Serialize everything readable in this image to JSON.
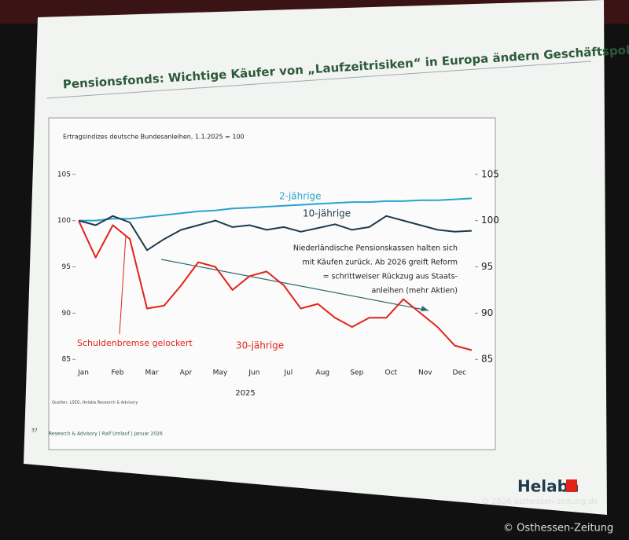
{
  "chart_data": {
    "type": "line",
    "title": "Pensionsfonds: Wichtige Käufer von „Laufzeitrisiken“ in Europa ändern Geschäftspolitik",
    "subtitle": "Ertragsindizes deutsche Bundesanleihen, 1.1.2025 = 100",
    "categories": [
      "Jan",
      null,
      "Feb",
      null,
      "Mar",
      null,
      "Apr",
      null,
      "May",
      null,
      "Jun",
      null,
      "Jul",
      null,
      "Aug",
      null,
      "Sep",
      null,
      "Oct",
      null,
      "Nov",
      null,
      "Dec",
      null
    ],
    "x_year_label": "2025",
    "series": [
      {
        "name": "2-jährige",
        "color": "#2aa3cf",
        "values": [
          100,
          100,
          100.2,
          100.2,
          100.4,
          100.6,
          100.8,
          101,
          101.1,
          101.3,
          101.4,
          101.5,
          101.6,
          101.7,
          101.8,
          101.9,
          102,
          102,
          102.1,
          102.1,
          102.2,
          102.2,
          102.3,
          102.4
        ]
      },
      {
        "name": "10-jährige",
        "color": "#1f3b4d",
        "values": [
          100,
          99.5,
          100.5,
          99.8,
          96.8,
          98,
          99,
          99.5,
          100,
          99.3,
          99.5,
          99,
          99.3,
          98.8,
          99.2,
          99.6,
          99,
          99.3,
          100.5,
          100,
          99.5,
          99,
          98.8,
          98.9
        ]
      },
      {
        "name": "30-jährige",
        "color": "#e2231a",
        "values": [
          100,
          96,
          99.5,
          98,
          90.5,
          90.8,
          93,
          95.5,
          95,
          92.5,
          94,
          94.5,
          93,
          90.5,
          91,
          89.5,
          88.5,
          89.5,
          89.5,
          91.5,
          90,
          88.5,
          86.5,
          86
        ]
      }
    ],
    "ylim": [
      84,
      106
    ],
    "yticks": [
      85,
      90,
      95,
      100,
      105
    ],
    "y2lim": [
      84,
      106
    ],
    "y2ticks": [
      85,
      90,
      95,
      100,
      105
    ],
    "annotations": {
      "reform": [
        "Niederländische Pensionskassen halten sich",
        "mit Käufen zurück. Ab 2026 greift Reform",
        "= schrittweiser Rückzug aus Staats-",
        "anleihen (mehr Aktien)"
      ],
      "schuldenbremse": "Schuldenbremse gelockert"
    },
    "source": "Quellen: LSEG, Helaba Research & Advisory",
    "footer": {
      "page": "37",
      "text": "Research & Advisory | Ralf Umlauf | Januar 2026",
      "brand": "Helaba"
    },
    "watermarks": [
      "© 2026 osthessen-zeitung.de",
      "© Osthessen-Zeitung"
    ]
  }
}
